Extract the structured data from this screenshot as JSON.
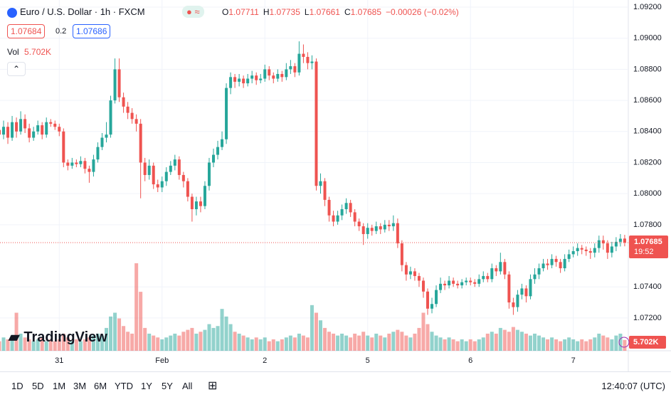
{
  "chart_data": {
    "type": "candlestick",
    "title": "Euro / U.S. Dollar · 1h · FXCM",
    "ohlc_labels": [
      "O",
      "H",
      "L",
      "C"
    ],
    "change_label": "−0.00026 (−0.02%)",
    "bid": "1.07684",
    "spread": "0.2",
    "ask": "1.07686",
    "volume_label": "Vol",
    "volume_last_label": "5.702K",
    "countdown": "19:52",
    "up_color": "#26a69a",
    "down_color": "#ef5350",
    "ylim": [
      1.06989,
      1.09246
    ],
    "yticks": [
      {
        "value": 1.092,
        "label": "1.09200"
      },
      {
        "value": 1.09,
        "label": "1.09000"
      },
      {
        "value": 1.088,
        "label": "1.08800"
      },
      {
        "value": 1.086,
        "label": "1.08600"
      },
      {
        "value": 1.084,
        "label": "1.08400"
      },
      {
        "value": 1.082,
        "label": "1.08200"
      },
      {
        "value": 1.08,
        "label": "1.08000"
      },
      {
        "value": 1.078,
        "label": "1.07800"
      },
      {
        "value": 1.074,
        "label": "1.07400"
      },
      {
        "value": 1.072,
        "label": "1.07200"
      }
    ],
    "categories": [
      null,
      null,
      null,
      null,
      null,
      null,
      null,
      null,
      null,
      null,
      null,
      null,
      null,
      null,
      "31",
      null,
      null,
      null,
      null,
      null,
      null,
      null,
      null,
      null,
      null,
      null,
      null,
      null,
      null,
      null,
      null,
      null,
      null,
      null,
      null,
      null,
      null,
      null,
      "Feb",
      null,
      null,
      null,
      null,
      null,
      null,
      null,
      null,
      null,
      null,
      null,
      null,
      null,
      null,
      null,
      null,
      null,
      null,
      null,
      null,
      null,
      null,
      null,
      "2",
      null,
      null,
      null,
      null,
      null,
      null,
      null,
      null,
      null,
      null,
      null,
      null,
      null,
      null,
      null,
      null,
      null,
      null,
      null,
      null,
      null,
      null,
      null,
      "5",
      null,
      null,
      null,
      null,
      null,
      null,
      null,
      null,
      null,
      null,
      null,
      null,
      null,
      null,
      null,
      null,
      null,
      null,
      null,
      null,
      null,
      null,
      null,
      "6",
      null,
      null,
      null,
      null,
      null,
      null,
      null,
      null,
      null,
      null,
      null,
      null,
      null,
      null,
      null,
      null,
      null,
      null,
      null,
      null,
      null,
      null,
      null,
      "7",
      null,
      null,
      null,
      null,
      null,
      null,
      null,
      null,
      null,
      null,
      null,
      null
    ],
    "open": [
      1.0841,
      1.0838,
      1.0843,
      1.0836,
      1.0846,
      1.084,
      1.0848,
      1.0842,
      1.0836,
      1.084,
      1.0844,
      1.0838,
      1.0846,
      1.0845,
      1.0843,
      1.084,
      1.082,
      1.0818,
      1.082,
      1.0819,
      1.0821,
      1.0816,
      1.0814,
      1.0822,
      1.083,
      1.0836,
      1.0838,
      1.086,
      1.088,
      1.0862,
      1.0856,
      1.0852,
      1.0848,
      1.0845,
      1.082,
      1.0812,
      1.0818,
      1.0806,
      1.0804,
      1.0808,
      1.0814,
      1.0818,
      1.0822,
      1.0812,
      1.0808,
      1.0798,
      1.079,
      1.0795,
      1.0792,
      1.0805,
      1.082,
      1.0825,
      1.083,
      1.0835,
      1.0868,
      1.0875,
      1.0872,
      1.0874,
      1.0871,
      1.0874,
      1.0876,
      1.0873,
      1.0874,
      1.088,
      1.0876,
      1.0874,
      1.0877,
      1.0875,
      1.088,
      1.0882,
      1.0878,
      1.089,
      1.0888,
      1.0884,
      1.0885,
      1.0805,
      1.0808,
      1.0796,
      1.0786,
      1.0782,
      1.0786,
      1.079,
      1.0794,
      1.0788,
      1.0782,
      1.0779,
      1.0774,
      1.0778,
      1.0776,
      1.0779,
      1.0777,
      1.078,
      1.0779,
      1.0781,
      1.0768,
      1.0754,
      1.0748,
      1.075,
      1.0747,
      1.0744,
      1.0737,
      1.0726,
      1.0729,
      1.0738,
      1.0742,
      1.0741,
      1.0744,
      1.0742,
      1.0741,
      1.0743,
      1.0744,
      1.0743,
      1.0742,
      1.0745,
      1.0747,
      1.0745,
      1.0752,
      1.075,
      1.0756,
      1.0748,
      1.073,
      1.0727,
      1.0735,
      1.0739,
      1.0734,
      1.0745,
      1.0748,
      1.0752,
      1.0755,
      1.0754,
      1.0758,
      1.0756,
      1.0752,
      1.0758,
      1.0761,
      1.0763,
      1.0765,
      1.0764,
      1.0763,
      1.0762,
      1.0765,
      1.077,
      1.0768,
      1.0762,
      1.0766,
      1.0769,
      1.07711
    ],
    "high": [
      1.0845,
      1.0847,
      1.0846,
      1.085,
      1.0849,
      1.0853,
      1.0851,
      1.0845,
      1.0843,
      1.0847,
      1.0846,
      1.0849,
      1.0848,
      1.0847,
      1.0845,
      1.0842,
      1.0822,
      1.0823,
      1.0822,
      1.0824,
      1.0823,
      1.0818,
      1.0825,
      1.0833,
      1.0839,
      1.0846,
      1.0863,
      1.0887,
      1.0887,
      1.0865,
      1.0859,
      1.0855,
      1.0851,
      1.0848,
      1.0823,
      1.0822,
      1.082,
      1.0809,
      1.0811,
      1.0817,
      1.0821,
      1.0825,
      1.0824,
      1.0814,
      1.081,
      1.08,
      1.0798,
      1.0798,
      1.0808,
      1.0823,
      1.0829,
      1.0834,
      1.084,
      1.0871,
      1.0878,
      1.0877,
      1.0877,
      1.0876,
      1.0877,
      1.0879,
      1.0878,
      1.0877,
      1.0883,
      1.0882,
      1.0878,
      1.088,
      1.0879,
      1.0884,
      1.0886,
      1.0884,
      1.0898,
      1.0896,
      1.0891,
      1.0889,
      1.0887,
      1.0813,
      1.081,
      1.0798,
      1.0789,
      1.0789,
      1.0793,
      1.0797,
      1.0796,
      1.079,
      1.0784,
      1.0781,
      1.0781,
      1.078,
      1.0782,
      1.0781,
      1.0783,
      1.0783,
      1.0786,
      1.0784,
      1.077,
      1.0756,
      1.0753,
      1.0752,
      1.0749,
      1.0746,
      1.0739,
      1.0733,
      1.0741,
      1.0746,
      1.0744,
      1.0747,
      1.0746,
      1.0744,
      1.0745,
      1.0746,
      1.0746,
      1.0745,
      1.0748,
      1.075,
      1.0749,
      1.0755,
      1.0754,
      1.0762,
      1.0758,
      1.075,
      1.0733,
      1.0738,
      1.0742,
      1.0741,
      1.0748,
      1.0752,
      1.0755,
      1.0758,
      1.0758,
      1.0761,
      1.076,
      1.0758,
      1.0761,
      1.0764,
      1.0766,
      1.0768,
      1.0767,
      1.0766,
      1.0765,
      1.0768,
      1.0773,
      1.0773,
      1.077,
      1.0769,
      1.0772,
      1.0774,
      1.07735
    ],
    "low": [
      1.0834,
      1.0835,
      1.0832,
      1.0834,
      1.0836,
      1.0838,
      1.0839,
      1.0833,
      1.0834,
      1.0838,
      1.0835,
      1.0836,
      1.0843,
      1.0841,
      1.0837,
      1.0817,
      1.0815,
      1.0816,
      1.0817,
      1.0817,
      1.0813,
      1.0807,
      1.0811,
      1.082,
      1.0828,
      1.0833,
      1.0836,
      1.0858,
      1.0859,
      1.0852,
      1.0848,
      1.0845,
      1.084,
      1.0797,
      1.0808,
      1.0809,
      1.0803,
      1.0801,
      1.0801,
      1.0805,
      1.0812,
      1.0815,
      1.0809,
      1.0804,
      1.0795,
      1.0782,
      1.0786,
      1.0788,
      1.079,
      1.0802,
      1.0817,
      1.0822,
      1.0828,
      1.0832,
      1.0864,
      1.0868,
      1.0869,
      1.0868,
      1.0869,
      1.0871,
      1.087,
      1.0871,
      1.0872,
      1.0873,
      1.0871,
      1.0872,
      1.0872,
      1.0873,
      1.0877,
      1.0875,
      1.0876,
      1.0884,
      1.088,
      1.088,
      1.0802,
      1.08,
      1.0792,
      1.0782,
      1.0779,
      1.078,
      1.0783,
      1.0787,
      1.0785,
      1.0779,
      1.0776,
      1.0767,
      1.0771,
      1.0773,
      1.0774,
      1.0774,
      1.0775,
      1.0776,
      1.0776,
      1.0765,
      1.075,
      1.0744,
      1.0745,
      1.0744,
      1.074,
      1.0733,
      1.0722,
      1.0723,
      1.0727,
      1.0736,
      1.0738,
      1.0739,
      1.074,
      1.0739,
      1.0739,
      1.0741,
      1.0741,
      1.074,
      1.074,
      1.0743,
      1.0743,
      1.0743,
      1.0747,
      1.0748,
      1.0745,
      1.0726,
      1.0722,
      1.0724,
      1.0732,
      1.073,
      1.0732,
      1.0742,
      1.0745,
      1.075,
      1.0751,
      1.0752,
      1.0753,
      1.0749,
      1.075,
      1.0756,
      1.0759,
      1.076,
      1.0761,
      1.076,
      1.0758,
      1.0759,
      1.0762,
      1.0764,
      1.0758,
      1.0759,
      1.0763,
      1.0766,
      1.07661
    ],
    "close": [
      1.0838,
      1.0843,
      1.0836,
      1.0846,
      1.084,
      1.0848,
      1.0842,
      1.0836,
      1.084,
      1.0844,
      1.0838,
      1.0846,
      1.0845,
      1.0843,
      1.084,
      1.082,
      1.0818,
      1.082,
      1.0819,
      1.0821,
      1.0816,
      1.0814,
      1.0822,
      1.083,
      1.0836,
      1.0838,
      1.086,
      1.088,
      1.0862,
      1.0856,
      1.0852,
      1.0848,
      1.0845,
      1.082,
      1.0812,
      1.0818,
      1.0806,
      1.0804,
      1.0808,
      1.0814,
      1.0818,
      1.0822,
      1.0812,
      1.0808,
      1.0798,
      1.079,
      1.0795,
      1.0792,
      1.0805,
      1.082,
      1.0825,
      1.083,
      1.0835,
      1.0868,
      1.0875,
      1.0872,
      1.0874,
      1.0871,
      1.0874,
      1.0876,
      1.0873,
      1.0874,
      1.088,
      1.0876,
      1.0874,
      1.0877,
      1.0875,
      1.088,
      1.0882,
      1.0878,
      1.089,
      1.0888,
      1.0884,
      1.0885,
      1.0805,
      1.0808,
      1.0796,
      1.0786,
      1.0782,
      1.0786,
      1.079,
      1.0794,
      1.0788,
      1.0782,
      1.0779,
      1.0774,
      1.0778,
      1.0776,
      1.0779,
      1.0777,
      1.078,
      1.0779,
      1.0781,
      1.0768,
      1.0754,
      1.0748,
      1.075,
      1.0747,
      1.0744,
      1.0737,
      1.0726,
      1.0729,
      1.0738,
      1.0742,
      1.0741,
      1.0744,
      1.0742,
      1.0741,
      1.0743,
      1.0744,
      1.0743,
      1.0742,
      1.0745,
      1.0747,
      1.0745,
      1.0752,
      1.075,
      1.0756,
      1.0748,
      1.073,
      1.0727,
      1.0735,
      1.0739,
      1.0734,
      1.0745,
      1.0748,
      1.0752,
      1.0755,
      1.0754,
      1.0758,
      1.0756,
      1.0752,
      1.0758,
      1.0761,
      1.0763,
      1.0765,
      1.0764,
      1.0763,
      1.0762,
      1.0765,
      1.077,
      1.0768,
      1.0762,
      1.0766,
      1.0769,
      1.0771,
      1.07685
    ],
    "volume": [
      5000,
      7000,
      6000,
      8000,
      20000,
      9000,
      7000,
      6000,
      5000,
      6000,
      7000,
      5000,
      6000,
      5000,
      6000,
      9000,
      7000,
      5000,
      6000,
      5000,
      6000,
      7000,
      8000,
      9000,
      8000,
      12000,
      18000,
      20000,
      17000,
      13000,
      10000,
      9000,
      46000,
      31000,
      12000,
      9000,
      8000,
      7000,
      6000,
      7000,
      8000,
      9000,
      8000,
      10000,
      11000,
      12000,
      9000,
      10000,
      11000,
      14000,
      12000,
      13000,
      22000,
      18000,
      14000,
      10000,
      9000,
      8000,
      7000,
      6000,
      7000,
      6000,
      7000,
      5000,
      6000,
      5000,
      6000,
      7000,
      8000,
      7000,
      9000,
      8000,
      7000,
      24000,
      20000,
      16000,
      12000,
      10000,
      9000,
      8000,
      9000,
      8000,
      7000,
      9000,
      8000,
      10000,
      8000,
      7000,
      9000,
      8000,
      7000,
      9000,
      10000,
      11000,
      10000,
      8000,
      7000,
      9000,
      12000,
      20000,
      14000,
      10000,
      8000,
      7000,
      6000,
      7000,
      6000,
      5000,
      6000,
      5000,
      6000,
      5000,
      6000,
      7000,
      9000,
      10000,
      9000,
      12000,
      11000,
      10000,
      12500,
      11000,
      10000,
      9000,
      8000,
      9000,
      8000,
      7000,
      6000,
      7000,
      6000,
      5000,
      6000,
      7000,
      6000,
      5000,
      6000,
      5000,
      6000,
      7000,
      9000,
      8000,
      7000,
      6000,
      8000,
      9000,
      5702
    ]
  },
  "brand": "TradingView",
  "ranges": [
    "1D",
    "5D",
    "1M",
    "3M",
    "6M",
    "YTD",
    "1Y",
    "5Y",
    "All"
  ],
  "clock": "12:40:07 (UTC)"
}
